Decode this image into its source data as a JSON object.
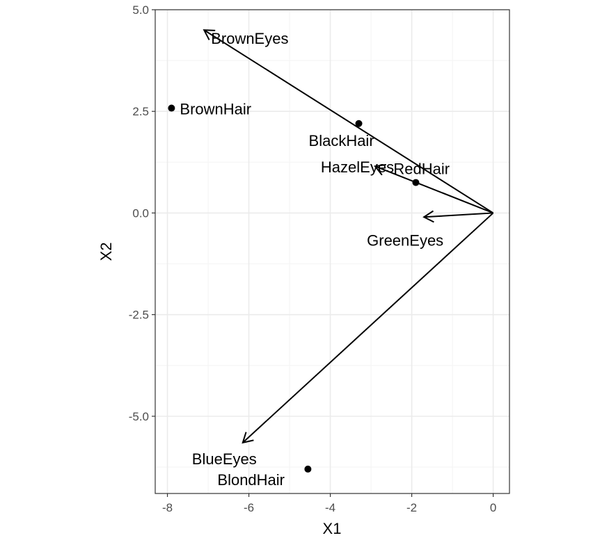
{
  "chart_data": {
    "type": "scatter",
    "title": "",
    "xlabel": "X1",
    "ylabel": "X2",
    "xlim": [
      -8.3,
      0.4
    ],
    "ylim": [
      -6.9,
      5.0
    ],
    "x_ticks": [
      -8,
      -6,
      -4,
      -2,
      0
    ],
    "x_tick_labels": [
      "-8",
      "-6",
      "-4",
      "-2",
      "0"
    ],
    "y_ticks": [
      -5.0,
      -2.5,
      0.0,
      2.5,
      5.0
    ],
    "y_tick_labels": [
      "-5.0",
      "-2.5",
      "0.0",
      "2.5",
      "5.0"
    ],
    "grid": true,
    "points": [
      {
        "label": "BrownHair",
        "x": -7.9,
        "y": 2.58
      },
      {
        "label": "BlackHair",
        "x": -3.3,
        "y": 2.2
      },
      {
        "label": "RedHair",
        "x": -1.9,
        "y": 0.75
      },
      {
        "label": "BlondHair",
        "x": -4.55,
        "y": -6.3
      }
    ],
    "arrows": [
      {
        "label": "BrownEyes",
        "x": -7.1,
        "y": 4.5
      },
      {
        "label": "HazelEyes",
        "x": -2.9,
        "y": 1.15
      },
      {
        "label": "GreenEyes",
        "x": -1.7,
        "y": -0.1
      },
      {
        "label": "BlueEyes",
        "x": -6.15,
        "y": -5.65
      }
    ],
    "colors": {
      "ink": "#000000",
      "grid_major": "#ebebeb",
      "grid_minor": "#f5f5f5",
      "panel_border": "#333333",
      "tick_text": "#4d4d4d"
    }
  }
}
